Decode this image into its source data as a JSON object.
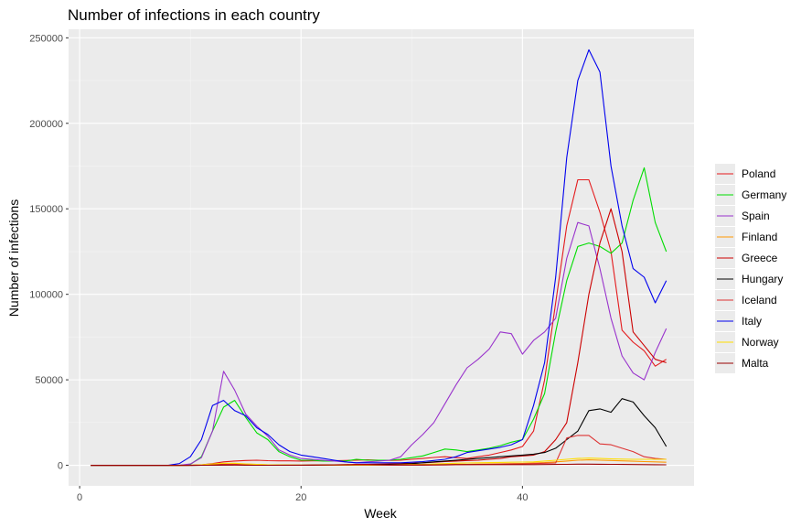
{
  "chart_data": {
    "type": "line",
    "title": "Number of infections in each country",
    "xlabel": "Week",
    "ylabel": "Number of infections",
    "xlim": [
      -1,
      55.5
    ],
    "ylim": [
      -12000,
      255000
    ],
    "x_ticks": [
      0,
      20,
      40
    ],
    "y_ticks": [
      0,
      50000,
      100000,
      150000,
      200000,
      250000
    ],
    "y_tick_labels": [
      "0",
      "50000",
      "100000",
      "150000",
      "200000",
      "250000"
    ],
    "grid": true,
    "legend_position": "right",
    "x": [
      1,
      2,
      3,
      4,
      5,
      6,
      7,
      8,
      9,
      10,
      11,
      12,
      13,
      14,
      15,
      16,
      17,
      18,
      19,
      20,
      21,
      22,
      23,
      24,
      25,
      26,
      27,
      28,
      29,
      30,
      31,
      32,
      33,
      34,
      35,
      36,
      37,
      38,
      39,
      40,
      41,
      42,
      43,
      44,
      45,
      46,
      47,
      48,
      49,
      50,
      51,
      52,
      53
    ],
    "series": [
      {
        "name": "Poland",
        "color": "#e41a1c",
        "values": [
          0,
          0,
          0,
          0,
          0,
          0,
          0,
          0,
          0,
          30,
          300,
          1000,
          2000,
          2500,
          2800,
          3000,
          2700,
          2600,
          2600,
          2500,
          2600,
          2600,
          2700,
          2800,
          3000,
          3200,
          3000,
          2900,
          3000,
          3500,
          4000,
          4600,
          5000,
          4500,
          4000,
          5000,
          6000,
          7500,
          9000,
          11000,
          20000,
          50000,
          95000,
          140000,
          167000,
          167000,
          148000,
          125000,
          79000,
          72000,
          67000,
          58000,
          62000
        ]
      },
      {
        "name": "Germany",
        "color": "#00dd00",
        "values": [
          0,
          0,
          0,
          0,
          0,
          0,
          0,
          0,
          0,
          500,
          5000,
          20000,
          34000,
          38000,
          28000,
          19000,
          15000,
          8000,
          5000,
          3000,
          3000,
          2500,
          2500,
          2500,
          3500,
          3000,
          3000,
          3000,
          3500,
          4500,
          5500,
          7500,
          9500,
          9000,
          8000,
          9000,
          10000,
          11500,
          13500,
          15000,
          27000,
          42000,
          78000,
          108000,
          128000,
          130000,
          128000,
          124000,
          130000,
          155000,
          174000,
          142000,
          125000
        ]
      },
      {
        "name": "Spain",
        "color": "#9933cc",
        "values": [
          0,
          0,
          0,
          0,
          0,
          0,
          0,
          0,
          0,
          800,
          4500,
          20000,
          55000,
          44000,
          30000,
          23000,
          17000,
          9000,
          6000,
          4000,
          3500,
          3000,
          2500,
          2000,
          1500,
          2000,
          2500,
          3000,
          5000,
          12000,
          18000,
          25000,
          36000,
          47000,
          57000,
          62000,
          68000,
          78000,
          77000,
          65000,
          73000,
          78000,
          86000,
          121000,
          142000,
          140000,
          115000,
          86000,
          64000,
          54000,
          50000,
          66000,
          80000
        ]
      },
      {
        "name": "Finland",
        "color": "#ff9900",
        "values": [
          0,
          0,
          0,
          0,
          0,
          0,
          0,
          0,
          0,
          50,
          200,
          500,
          800,
          800,
          700,
          500,
          300,
          200,
          150,
          100,
          100,
          100,
          100,
          100,
          100,
          100,
          100,
          100,
          150,
          200,
          250,
          300,
          400,
          500,
          600,
          700,
          800,
          900,
          1000,
          1100,
          1300,
          1600,
          2000,
          2500,
          3000,
          3200,
          3000,
          2800,
          2600,
          2400,
          2200,
          2000,
          1800
        ]
      },
      {
        "name": "Greece",
        "color": "#cc0000",
        "values": [
          0,
          0,
          0,
          0,
          0,
          0,
          0,
          0,
          0,
          50,
          200,
          400,
          500,
          400,
          300,
          200,
          150,
          100,
          100,
          100,
          200,
          300,
          300,
          400,
          500,
          600,
          700,
          800,
          1000,
          1200,
          1500,
          1800,
          2200,
          2500,
          2800,
          3000,
          3500,
          4000,
          5000,
          5500,
          6000,
          8000,
          15000,
          25000,
          60000,
          100000,
          130000,
          150000,
          125000,
          78000,
          70000,
          62000,
          60000
        ]
      },
      {
        "name": "Hungary",
        "color": "#000000",
        "values": [
          0,
          0,
          0,
          0,
          0,
          0,
          0,
          0,
          0,
          0,
          50,
          100,
          200,
          300,
          400,
          300,
          200,
          150,
          100,
          100,
          100,
          100,
          100,
          150,
          200,
          300,
          400,
          500,
          700,
          1000,
          1500,
          2000,
          2500,
          3000,
          3500,
          4000,
          4500,
          5000,
          5500,
          6000,
          6500,
          7500,
          10000,
          15000,
          20000,
          32000,
          33000,
          31000,
          39000,
          37000,
          29000,
          22000,
          11000
        ]
      },
      {
        "name": "Iceland",
        "color": "#dd3333",
        "values": [
          0,
          0,
          0,
          0,
          0,
          0,
          0,
          0,
          0,
          0,
          50,
          200,
          500,
          600,
          500,
          300,
          200,
          100,
          50,
          50,
          50,
          50,
          50,
          50,
          50,
          50,
          50,
          50,
          50,
          50,
          100,
          150,
          200,
          300,
          400,
          500,
          600,
          700,
          800,
          900,
          1000,
          1200,
          1400,
          16000,
          17500,
          17500,
          12500,
          12000,
          10000,
          8000,
          5000,
          4000,
          3500
        ]
      },
      {
        "name": "Italy",
        "color": "#0000ee",
        "values": [
          0,
          0,
          0,
          0,
          0,
          0,
          0,
          0,
          1000,
          5000,
          15000,
          35000,
          38000,
          32000,
          29000,
          22000,
          18000,
          12000,
          8000,
          6000,
          5000,
          4000,
          3000,
          2000,
          1500,
          1500,
          1500,
          1500,
          1500,
          1800,
          2200,
          2800,
          3500,
          5000,
          7500,
          8500,
          9500,
          10500,
          12000,
          15000,
          35000,
          60000,
          110000,
          180000,
          225000,
          243000,
          230000,
          175000,
          140000,
          115000,
          110000,
          95000,
          108000
        ]
      },
      {
        "name": "Norway",
        "color": "#ffdd00",
        "values": [
          0,
          0,
          0,
          0,
          0,
          0,
          0,
          0,
          0,
          50,
          300,
          800,
          1200,
          1200,
          800,
          500,
          300,
          200,
          150,
          100,
          100,
          100,
          100,
          100,
          100,
          100,
          200,
          300,
          400,
          500,
          600,
          800,
          1000,
          1200,
          1400,
          1500,
          1600,
          1700,
          1800,
          1900,
          2000,
          2500,
          3000,
          3500,
          4000,
          4200,
          4000,
          3800,
          3600,
          3500,
          3500,
          3500,
          3500
        ]
      },
      {
        "name": "Malta",
        "color": "#990000",
        "values": [
          0,
          0,
          0,
          0,
          0,
          0,
          0,
          0,
          0,
          0,
          50,
          100,
          150,
          150,
          100,
          50,
          50,
          50,
          50,
          50,
          100,
          150,
          200,
          250,
          300,
          300,
          300,
          300,
          250,
          250,
          250,
          300,
          350,
          400,
          400,
          400,
          400,
          400,
          400,
          400,
          400,
          450,
          500,
          600,
          700,
          700,
          650,
          600,
          500,
          450,
          400,
          350,
          300
        ]
      }
    ]
  }
}
